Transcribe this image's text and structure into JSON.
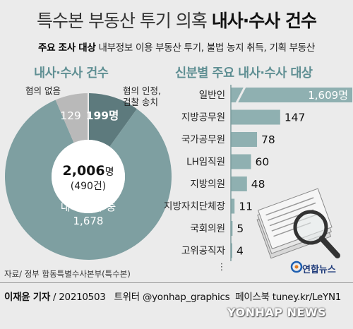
{
  "header": {
    "title_light": "특수본 부동산 투기 의혹",
    "title_bold": "내사·수사 건수",
    "subtitle_bold": "주요 조사 대상",
    "subtitle_rest": "내부정보 이용 부동산 투기, 불법 농지 취득, 기획 부동산"
  },
  "colors": {
    "teal": "#7e9fa1",
    "teal_dark": "#5d7a7d",
    "gray": "#b9b9b9",
    "bar": "#8fb0b1",
    "bar_highlight": "#6a9699",
    "section_title": "#5f8f93",
    "background": "#ebebeb"
  },
  "chart_data": [
    {
      "type": "pie",
      "title": "내사·수사 건수",
      "center_value": "2,006",
      "center_unit": "명",
      "center_sub": "(490건)",
      "slices": [
        {
          "label": "내사·수사 중",
          "value": 1678,
          "display": "1,678",
          "color": "#7e9fa1"
        },
        {
          "label": "혐의 인정, 검찰 송치",
          "value": 199,
          "display": "199명",
          "color": "#5d7a7d"
        },
        {
          "label": "혐의 없음",
          "value": 129,
          "display": "129",
          "color": "#b9b9b9"
        }
      ]
    },
    {
      "type": "bar",
      "orientation": "horizontal",
      "title": "신분별 주요 내사·수사 대상",
      "categories": [
        "일반인",
        "지방공무원",
        "국가공무원",
        "LH임직원",
        "지방의원",
        "지방자치단체장",
        "국회의원",
        "고위공직자"
      ],
      "values": [
        1609,
        147,
        78,
        60,
        48,
        11,
        5,
        4
      ],
      "value_labels": [
        "1,609명",
        "147",
        "78",
        "60",
        "48",
        "11",
        "5",
        "4"
      ],
      "truncated_first_bar": true,
      "more_indicator": "⋮"
    }
  ],
  "labels": {
    "none": "혐의 없음",
    "confirm_line1": "혐의 인정,",
    "confirm_line2": "검찰 송치"
  },
  "source": "자료/ 정부 합동특별수사본부(특수본)",
  "logo": {
    "icon": "yonhap-logo-icon",
    "text": "연합뉴스"
  },
  "footer": {
    "author": "이재윤 기자",
    "date": "20210503",
    "twitter_label": "트위터",
    "twitter": "@yonhap_graphics",
    "facebook_label": "페이스북",
    "facebook": "tuney.kr/LeYN1"
  },
  "watermark": "YONHAP NEWS"
}
